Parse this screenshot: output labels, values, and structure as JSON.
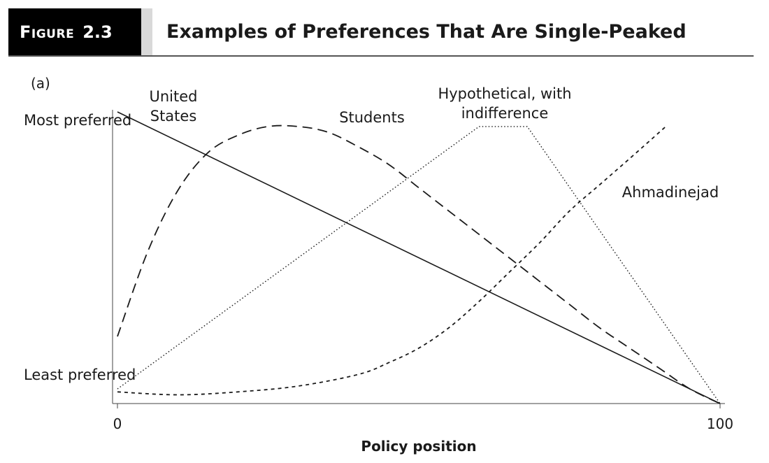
{
  "figure": {
    "label_word": "Figure",
    "label_number": "2.3",
    "title": "Examples of Preferences That Are Single-Peaked",
    "panel": "(a)"
  },
  "chart_data": {
    "type": "line",
    "title": "Examples of Preferences That Are Single-Peaked",
    "xlabel": "Policy position",
    "ylabel_top": "Most preferred",
    "ylabel_bottom": "Least preferred",
    "xlim": [
      0,
      100
    ],
    "ylim": [
      0,
      1
    ],
    "x_ticks": [
      "0",
      "100"
    ],
    "grid": false,
    "series": [
      {
        "name": "United States",
        "style": "solid",
        "x": [
          0,
          100
        ],
        "y": [
          1.0,
          0.0
        ]
      },
      {
        "name": "Students",
        "style": "dashed",
        "x": [
          0,
          5,
          10,
          15,
          20,
          25,
          30,
          35,
          40,
          45,
          50,
          55,
          60,
          65,
          70,
          75,
          80,
          85,
          90,
          95,
          100
        ],
        "y": [
          0.23,
          0.52,
          0.73,
          0.86,
          0.92,
          0.95,
          0.95,
          0.93,
          0.88,
          0.82,
          0.74,
          0.66,
          0.58,
          0.5,
          0.42,
          0.34,
          0.26,
          0.19,
          0.12,
          0.05,
          0.0
        ]
      },
      {
        "name": "Hypothetical, with indifference",
        "style": "dotted",
        "x": [
          0,
          60,
          68,
          100
        ],
        "y": [
          0.05,
          0.95,
          0.95,
          0.0
        ]
      },
      {
        "name": "Ahmadinejad",
        "style": "short-dashed",
        "x": [
          0,
          10,
          20,
          30,
          40,
          45,
          50,
          55,
          60,
          65,
          70,
          75,
          80,
          85,
          91
        ],
        "y": [
          0.04,
          0.03,
          0.04,
          0.06,
          0.1,
          0.14,
          0.19,
          0.26,
          0.35,
          0.45,
          0.55,
          0.66,
          0.75,
          0.84,
          0.95
        ]
      }
    ]
  },
  "annotations": {
    "us_label": "United\nStates",
    "students_label": "Students",
    "hypothetical_label": "Hypothetical, with\nindifference",
    "ahmadinejad_label": "Ahmadinejad"
  },
  "colors": {
    "line": "#1a1a1a",
    "tab": "#000000",
    "tab_accent": "#d9d9d9"
  }
}
